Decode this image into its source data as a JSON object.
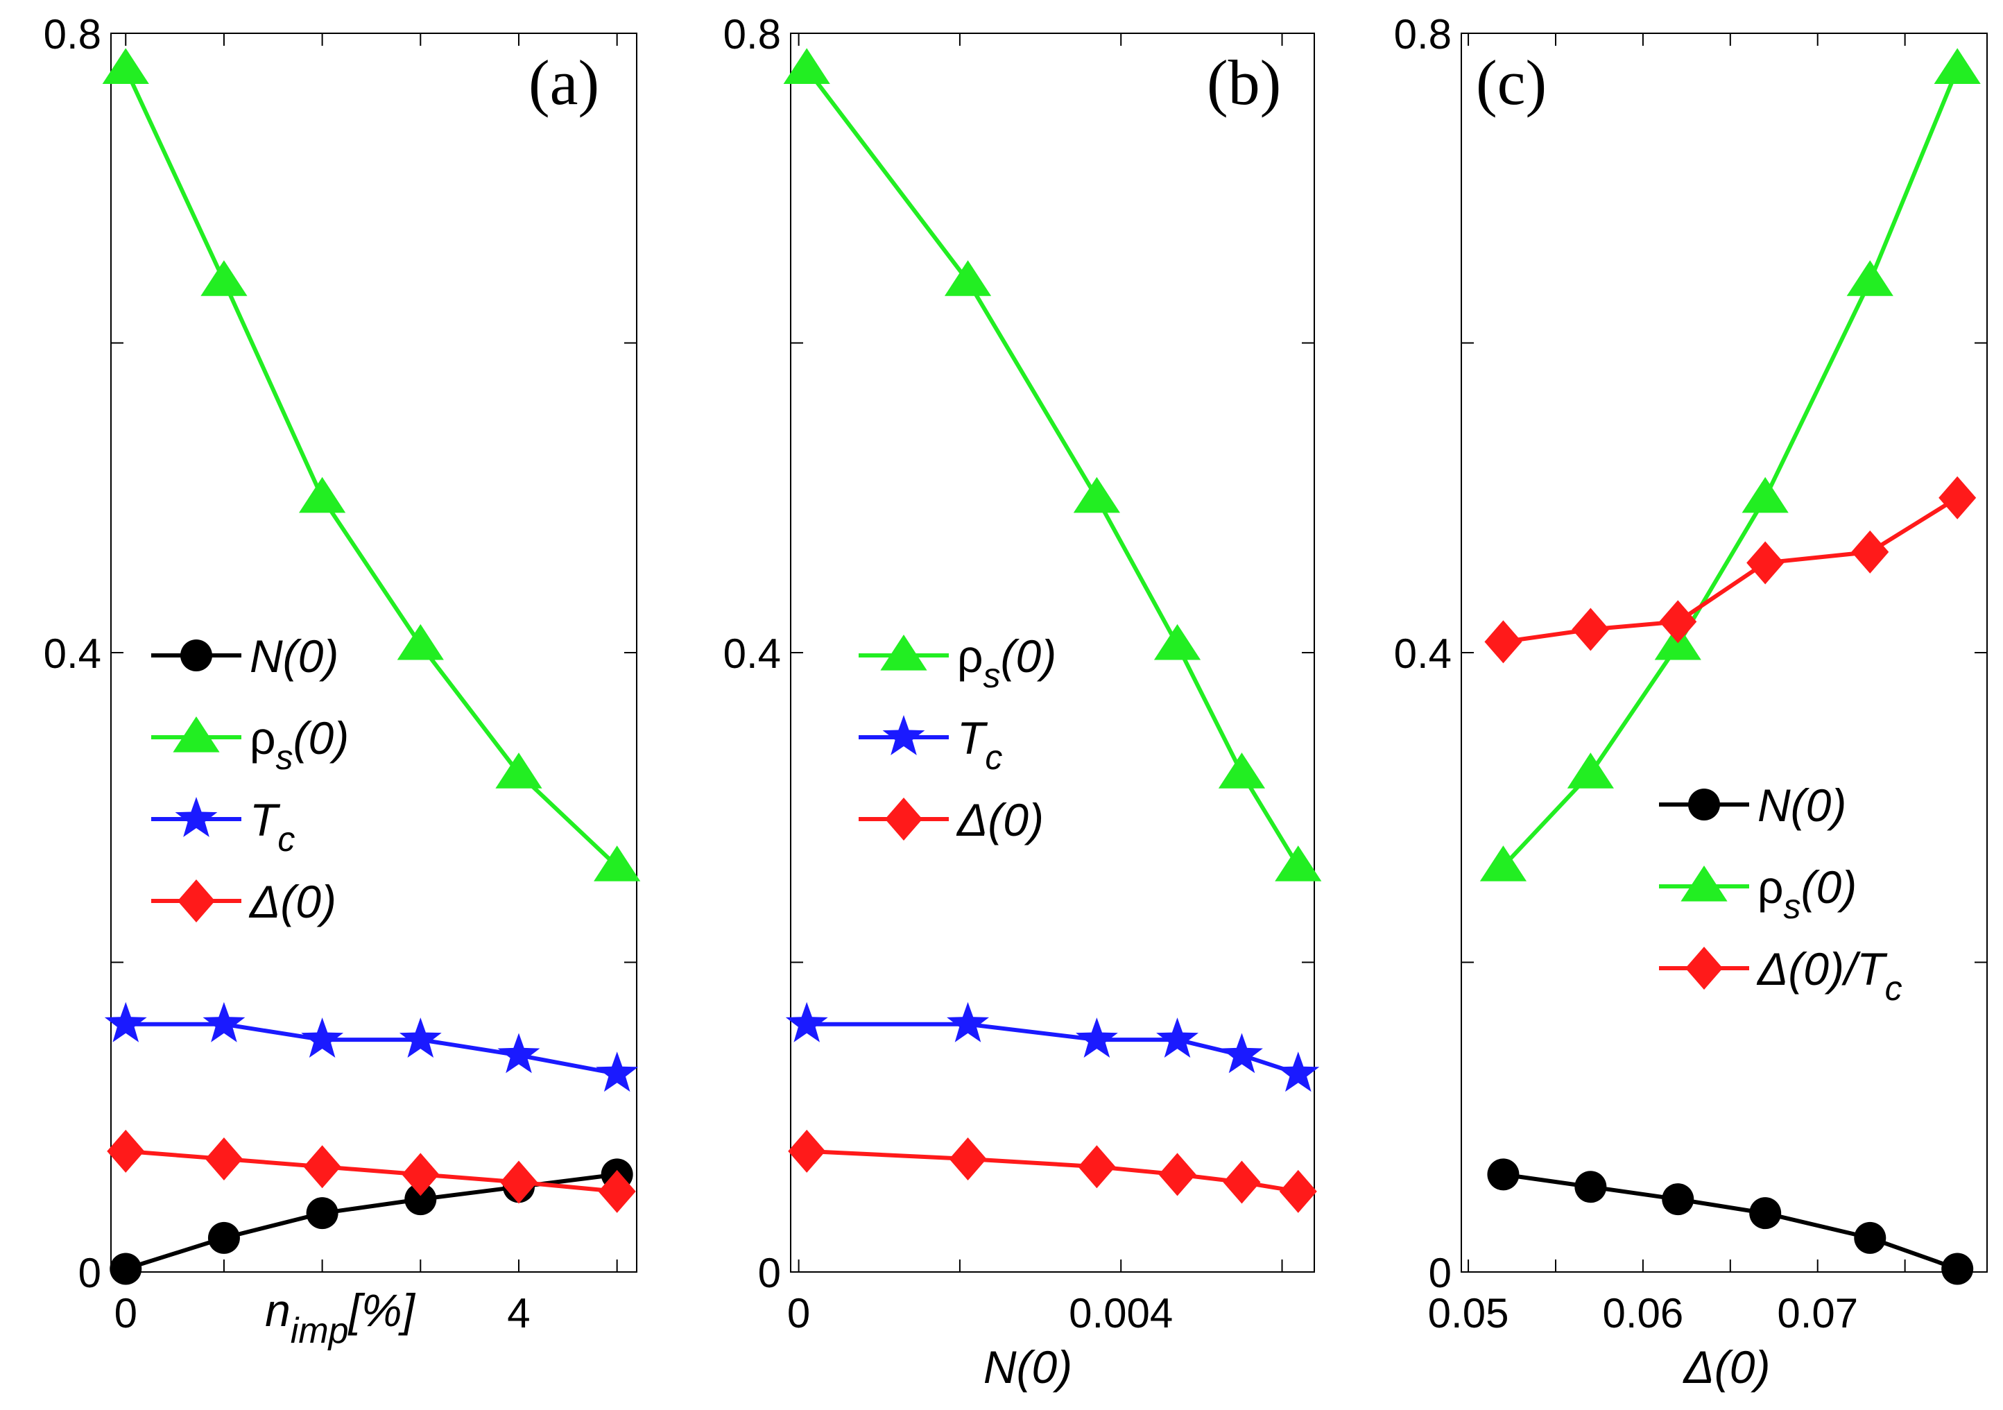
{
  "colors": {
    "N0": "#000000",
    "rho": "#22ee22",
    "Tc": "#1a1aff",
    "Delta": "#ff1a1a"
  },
  "chart_data": [
    {
      "type": "line",
      "panel_label": "(a)",
      "xlabel": "n_imp[%]",
      "xlabel_main": "n",
      "xlabel_sub": "imp",
      "xlabel_rest": "[%]",
      "ylabel": "",
      "xlim": [
        -0.15,
        5.2
      ],
      "ylim": [
        0,
        0.8
      ],
      "xticks": [
        0,
        1,
        2,
        3,
        4,
        5
      ],
      "xtick_labels": [
        "0",
        "",
        "",
        "",
        "4",
        ""
      ],
      "yticks": [
        0,
        0.2,
        0.4,
        0.6,
        0.8
      ],
      "ytick_labels": [
        "0",
        "",
        "0.4",
        "",
        "0.8"
      ],
      "legend_position": "center-left",
      "x": [
        0,
        1,
        2,
        3,
        4,
        5
      ],
      "series": [
        {
          "key": "N0",
          "name": "N(0)",
          "marker": "circle",
          "values": [
            0.002,
            0.022,
            0.038,
            0.047,
            0.055,
            0.063
          ]
        },
        {
          "key": "rho",
          "name": "ρs(0)",
          "name_main": "ρ",
          "name_sub": "s",
          "name_rest": "(0)",
          "marker": "triangle",
          "values": [
            0.777,
            0.64,
            0.5,
            0.405,
            0.322,
            0.262
          ]
        },
        {
          "key": "Tc",
          "name": "Tc",
          "name_main": "T",
          "name_sub": "c",
          "name_rest": "",
          "marker": "star",
          "values": [
            0.16,
            0.16,
            0.15,
            0.15,
            0.14,
            0.128
          ]
        },
        {
          "key": "Delta",
          "name": "Δ(0)",
          "marker": "diamond",
          "values": [
            0.078,
            0.073,
            0.068,
            0.063,
            0.058,
            0.052
          ]
        }
      ]
    },
    {
      "type": "line",
      "panel_label": "(b)",
      "xlabel": "N(0)",
      "ylabel": "",
      "xlim": [
        -0.0001,
        0.0064
      ],
      "ylim": [
        0,
        0.8
      ],
      "xticks": [
        0,
        0.002,
        0.004,
        0.006
      ],
      "xtick_labels": [
        "0",
        "",
        "0.004",
        ""
      ],
      "yticks": [
        0,
        0.2,
        0.4,
        0.6,
        0.8
      ],
      "ytick_labels": [
        "0",
        "",
        "0.4",
        "",
        "0.8"
      ],
      "legend_position": "center-left",
      "x": [
        0.0001,
        0.0021,
        0.0037,
        0.0047,
        0.0055,
        0.0062
      ],
      "series": [
        {
          "key": "rho",
          "name": "ρs(0)",
          "name_main": "ρ",
          "name_sub": "s",
          "name_rest": "(0)",
          "marker": "triangle",
          "values": [
            0.777,
            0.64,
            0.5,
            0.405,
            0.322,
            0.262
          ]
        },
        {
          "key": "Tc",
          "name": "Tc",
          "name_main": "T",
          "name_sub": "c",
          "name_rest": "",
          "marker": "star",
          "values": [
            0.16,
            0.16,
            0.15,
            0.15,
            0.14,
            0.128
          ]
        },
        {
          "key": "Delta",
          "name": "Δ(0)",
          "marker": "diamond",
          "values": [
            0.078,
            0.073,
            0.068,
            0.063,
            0.058,
            0.052
          ]
        }
      ]
    },
    {
      "type": "line",
      "panel_label": "(c)",
      "xlabel": "Δ(0)",
      "ylabel": "",
      "xlim": [
        0.0496,
        0.0797
      ],
      "ylim": [
        0,
        0.8
      ],
      "xticks": [
        0.05,
        0.055,
        0.06,
        0.065,
        0.07,
        0.075
      ],
      "xtick_labels": [
        "0.05",
        "",
        "0.06",
        "",
        "0.07",
        ""
      ],
      "yticks": [
        0,
        0.2,
        0.4,
        0.6,
        0.8
      ],
      "ytick_labels": [
        "0",
        "",
        "0.4",
        "",
        "0.8"
      ],
      "legend_position": "center-right",
      "x": [
        0.052,
        0.057,
        0.062,
        0.067,
        0.073,
        0.078
      ],
      "series": [
        {
          "key": "N0",
          "name": "N(0)",
          "marker": "circle",
          "values": [
            0.063,
            0.055,
            0.047,
            0.038,
            0.022,
            0.002
          ]
        },
        {
          "key": "rho",
          "name": "ρs(0)",
          "name_main": "ρ",
          "name_sub": "s",
          "name_rest": "(0)",
          "marker": "triangle",
          "values": [
            0.262,
            0.322,
            0.405,
            0.5,
            0.64,
            0.777
          ]
        },
        {
          "key": "Delta",
          "name": "Δ(0)/Tc",
          "name_main": "Δ(0)/T",
          "name_sub": "c",
          "name_rest": "",
          "marker": "diamond",
          "values": [
            0.407,
            0.415,
            0.42,
            0.458,
            0.465,
            0.5
          ]
        }
      ]
    }
  ]
}
